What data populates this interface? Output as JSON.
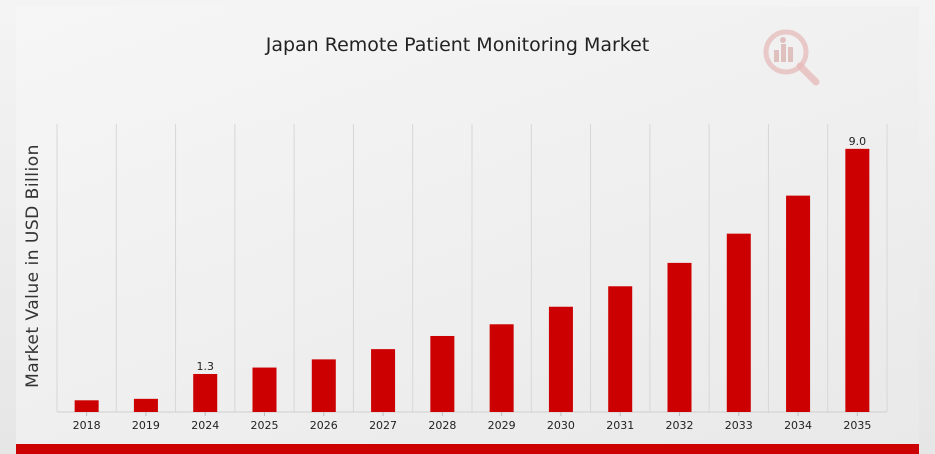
{
  "colors": {
    "bar": "#cc0000",
    "accent_bar": "#cc0000",
    "grid": "#d7d7d7",
    "axis_text": "#222222"
  },
  "watermark": {
    "icon": "magnifier-chart-logo-icon"
  },
  "chart_data": {
    "type": "bar",
    "title": "Japan Remote Patient Monitoring Market",
    "xlabel": "",
    "ylabel": "Market Value in USD Billion",
    "categories": [
      "2018",
      "2019",
      "2024",
      "2025",
      "2026",
      "2027",
      "2028",
      "2029",
      "2030",
      "2031",
      "2032",
      "2033",
      "2034",
      "2035"
    ],
    "values": [
      0.4,
      0.45,
      1.3,
      1.52,
      1.8,
      2.15,
      2.6,
      3.0,
      3.6,
      4.3,
      5.1,
      6.1,
      7.4,
      9.0
    ],
    "data_labels": {
      "2024": "1.3",
      "2035": "9.0"
    },
    "ylim": [
      0,
      9.85
    ],
    "grid": "vertical",
    "legend": "none"
  }
}
